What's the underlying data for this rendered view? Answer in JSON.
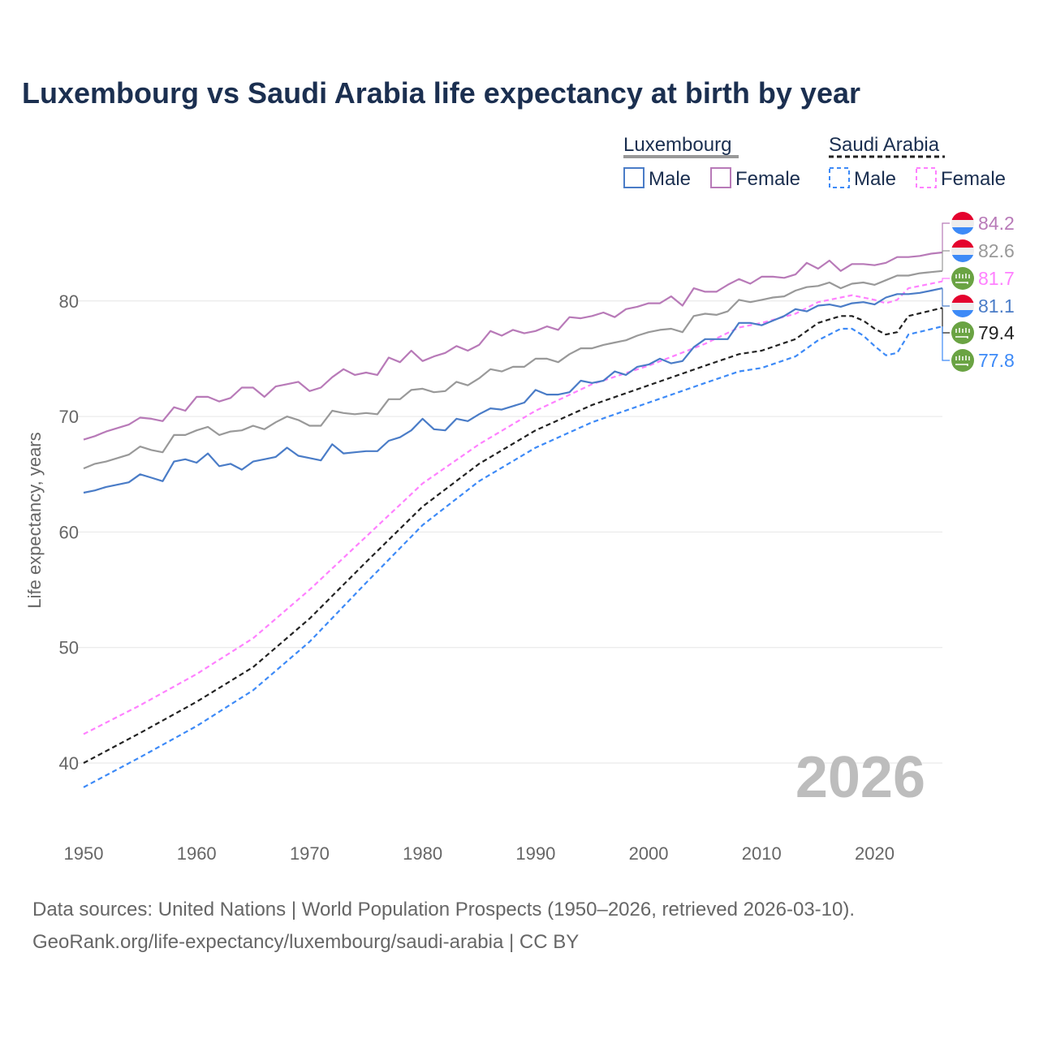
{
  "chart_data": {
    "type": "line",
    "title": "Luxembourg vs Saudi Arabia life expectancy at birth by year",
    "xlabel": "",
    "ylabel": "Life expectancy, years",
    "xlim": [
      1950,
      2026
    ],
    "ylim": [
      35,
      85
    ],
    "x_ticks": [
      1950,
      1960,
      1970,
      1980,
      1990,
      2000,
      2010,
      2020
    ],
    "y_ticks": [
      40,
      50,
      60,
      70,
      80
    ],
    "grid": true,
    "year_watermark": "2026",
    "legend": {
      "placement": "top-right",
      "groups": [
        {
          "label": "Luxembourg",
          "male": "Male",
          "female": "Female"
        },
        {
          "label": "Saudi Arabia",
          "male": "Male",
          "female": "Female"
        }
      ]
    },
    "series": [
      {
        "name": "Luxembourg Female",
        "color": "#b87ab8",
        "dashed": false,
        "flag": "luxembourg",
        "end_label": "84.2",
        "x": [
          1950,
          1951,
          1952,
          1953,
          1954,
          1955,
          1956,
          1957,
          1958,
          1959,
          1960,
          1961,
          1962,
          1963,
          1964,
          1965,
          1966,
          1967,
          1968,
          1969,
          1970,
          1971,
          1972,
          1973,
          1974,
          1975,
          1976,
          1977,
          1978,
          1979,
          1980,
          1981,
          1982,
          1983,
          1984,
          1985,
          1986,
          1987,
          1988,
          1989,
          1990,
          1991,
          1992,
          1993,
          1994,
          1995,
          1996,
          1997,
          1998,
          1999,
          2000,
          2001,
          2002,
          2003,
          2004,
          2005,
          2006,
          2007,
          2008,
          2009,
          2010,
          2011,
          2012,
          2013,
          2014,
          2015,
          2016,
          2017,
          2018,
          2019,
          2020,
          2021,
          2022,
          2023,
          2024,
          2025,
          2026
        ],
        "y": [
          68.0,
          68.3,
          68.7,
          69.0,
          69.3,
          69.9,
          69.8,
          69.6,
          70.8,
          70.5,
          71.7,
          71.7,
          71.3,
          71.6,
          72.5,
          72.5,
          71.7,
          72.6,
          72.8,
          73.0,
          72.2,
          72.5,
          73.4,
          74.1,
          73.6,
          73.8,
          73.6,
          75.1,
          74.7,
          75.7,
          74.8,
          75.2,
          75.5,
          76.1,
          75.7,
          76.2,
          77.4,
          77.0,
          77.5,
          77.2,
          77.4,
          77.8,
          77.5,
          78.6,
          78.5,
          78.7,
          79.0,
          78.6,
          79.3,
          79.5,
          79.8,
          79.8,
          80.4,
          79.6,
          81.1,
          80.8,
          80.8,
          81.4,
          81.9,
          81.5,
          82.1,
          82.1,
          82.0,
          82.3,
          83.3,
          82.8,
          83.5,
          82.6,
          83.2,
          83.2,
          83.1,
          83.3,
          83.8,
          83.8,
          83.9,
          84.1,
          84.2
        ]
      },
      {
        "name": "Luxembourg Total",
        "color": "#999999",
        "dashed": false,
        "flag": "luxembourg",
        "end_label": "82.6",
        "x": [
          1950,
          1951,
          1952,
          1953,
          1954,
          1955,
          1956,
          1957,
          1958,
          1959,
          1960,
          1961,
          1962,
          1963,
          1964,
          1965,
          1966,
          1967,
          1968,
          1969,
          1970,
          1971,
          1972,
          1973,
          1974,
          1975,
          1976,
          1977,
          1978,
          1979,
          1980,
          1981,
          1982,
          1983,
          1984,
          1985,
          1986,
          1987,
          1988,
          1989,
          1990,
          1991,
          1992,
          1993,
          1994,
          1995,
          1996,
          1997,
          1998,
          1999,
          2000,
          2001,
          2002,
          2003,
          2004,
          2005,
          2006,
          2007,
          2008,
          2009,
          2010,
          2011,
          2012,
          2013,
          2014,
          2015,
          2016,
          2017,
          2018,
          2019,
          2020,
          2021,
          2022,
          2023,
          2024,
          2025,
          2026
        ],
        "y": [
          65.5,
          65.9,
          66.1,
          66.4,
          66.7,
          67.4,
          67.1,
          66.9,
          68.4,
          68.4,
          68.8,
          69.1,
          68.4,
          68.7,
          68.8,
          69.2,
          68.9,
          69.5,
          70.0,
          69.7,
          69.2,
          69.2,
          70.5,
          70.3,
          70.2,
          70.3,
          70.2,
          71.5,
          71.5,
          72.3,
          72.4,
          72.1,
          72.2,
          73.0,
          72.7,
          73.3,
          74.1,
          73.9,
          74.3,
          74.3,
          75.0,
          75.0,
          74.7,
          75.4,
          75.9,
          75.9,
          76.2,
          76.4,
          76.6,
          77.0,
          77.3,
          77.5,
          77.6,
          77.3,
          78.7,
          78.9,
          78.8,
          79.1,
          80.1,
          79.9,
          80.1,
          80.3,
          80.4,
          80.9,
          81.2,
          81.3,
          81.6,
          81.1,
          81.5,
          81.6,
          81.4,
          81.8,
          82.2,
          82.2,
          82.4,
          82.5,
          82.6
        ]
      },
      {
        "name": "Saudi Arabia Female",
        "color": "#ff80ff",
        "dashed": true,
        "flag": "saudi-arabia",
        "end_label": "81.7",
        "x": [
          1950,
          1955,
          1960,
          1965,
          1970,
          1975,
          1980,
          1985,
          1990,
          1995,
          2000,
          2005,
          2008,
          2010,
          2013,
          2015,
          2018,
          2020,
          2021,
          2022,
          2023,
          2026
        ],
        "y": [
          42.5,
          45.0,
          47.7,
          50.8,
          55.0,
          59.6,
          64.2,
          67.6,
          70.5,
          72.8,
          74.4,
          76.3,
          77.7,
          78.1,
          78.9,
          79.9,
          80.5,
          80.1,
          79.8,
          80.1,
          81.1,
          81.7
        ]
      },
      {
        "name": "Luxembourg Male",
        "color": "#4a7cc7",
        "dashed": false,
        "flag": "luxembourg",
        "end_label": "81.1",
        "x": [
          1950,
          1951,
          1952,
          1953,
          1954,
          1955,
          1956,
          1957,
          1958,
          1959,
          1960,
          1961,
          1962,
          1963,
          1964,
          1965,
          1966,
          1967,
          1968,
          1969,
          1970,
          1971,
          1972,
          1973,
          1974,
          1975,
          1976,
          1977,
          1978,
          1979,
          1980,
          1981,
          1982,
          1983,
          1984,
          1985,
          1986,
          1987,
          1988,
          1989,
          1990,
          1991,
          1992,
          1993,
          1994,
          1995,
          1996,
          1997,
          1998,
          1999,
          2000,
          2001,
          2002,
          2003,
          2004,
          2005,
          2006,
          2007,
          2008,
          2009,
          2010,
          2011,
          2012,
          2013,
          2014,
          2015,
          2016,
          2017,
          2018,
          2019,
          2020,
          2021,
          2022,
          2023,
          2024,
          2025,
          2026
        ],
        "y": [
          63.4,
          63.6,
          63.9,
          64.1,
          64.3,
          65.0,
          64.7,
          64.4,
          66.1,
          66.3,
          66.0,
          66.8,
          65.7,
          65.9,
          65.4,
          66.1,
          66.3,
          66.5,
          67.3,
          66.6,
          66.4,
          66.2,
          67.6,
          66.8,
          66.9,
          67.0,
          67.0,
          67.9,
          68.2,
          68.8,
          69.8,
          68.9,
          68.8,
          69.8,
          69.6,
          70.2,
          70.7,
          70.6,
          70.9,
          71.2,
          72.3,
          71.9,
          71.9,
          72.1,
          73.1,
          72.9,
          73.1,
          73.9,
          73.6,
          74.3,
          74.5,
          75.0,
          74.6,
          74.8,
          76.0,
          76.7,
          76.7,
          76.7,
          78.1,
          78.1,
          77.9,
          78.3,
          78.7,
          79.3,
          79.1,
          79.6,
          79.7,
          79.5,
          79.8,
          79.9,
          79.7,
          80.3,
          80.6,
          80.6,
          80.7,
          80.9,
          81.1
        ]
      },
      {
        "name": "Saudi Arabia Total",
        "color": "#222222",
        "dashed": true,
        "flag": "saudi-arabia",
        "end_label": "79.4",
        "x": [
          1950,
          1955,
          1960,
          1965,
          1970,
          1975,
          1980,
          1985,
          1990,
          1995,
          2000,
          2005,
          2008,
          2010,
          2013,
          2015,
          2017,
          2018,
          2019,
          2020,
          2021,
          2022,
          2023,
          2026
        ],
        "y": [
          40.0,
          42.6,
          45.3,
          48.3,
          52.5,
          57.4,
          62.2,
          65.9,
          68.8,
          71.0,
          72.7,
          74.4,
          75.4,
          75.7,
          76.7,
          78.1,
          78.7,
          78.7,
          78.3,
          77.6,
          77.1,
          77.3,
          78.7,
          79.4
        ]
      },
      {
        "name": "Saudi Arabia Male",
        "color": "#3d8af7",
        "dashed": true,
        "flag": "saudi-arabia",
        "end_label": "77.8",
        "x": [
          1950,
          1955,
          1960,
          1965,
          1970,
          1975,
          1980,
          1985,
          1990,
          1995,
          2000,
          2005,
          2008,
          2010,
          2013,
          2015,
          2017,
          2018,
          2019,
          2020,
          2021,
          2022,
          2023,
          2026
        ],
        "y": [
          37.9,
          40.5,
          43.2,
          46.3,
          50.5,
          55.6,
          60.6,
          64.4,
          67.3,
          69.5,
          71.2,
          72.9,
          73.9,
          74.2,
          75.2,
          76.6,
          77.6,
          77.6,
          77.0,
          76.1,
          75.3,
          75.5,
          77.1,
          77.8
        ]
      }
    ]
  },
  "footer": {
    "line1": "Data sources: United Nations | World Population Prospects (1950–2026, retrieved 2026-03-10).",
    "line2": "GeoRank.org/life-expectancy/luxembourg/saudi-arabia | CC BY"
  }
}
